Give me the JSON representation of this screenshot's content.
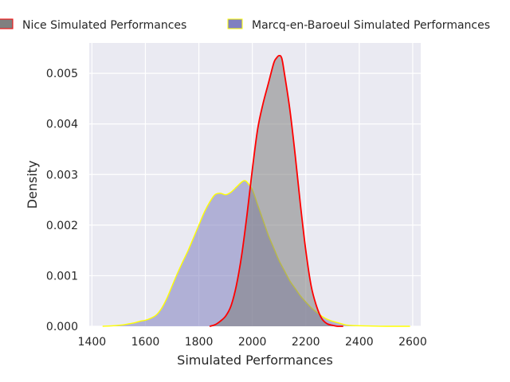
{
  "chart_data": {
    "type": "area",
    "xlabel": "Simulated Performances",
    "ylabel": "Density",
    "xlim": [
      1390,
      2630
    ],
    "ylim": [
      0,
      0.0056
    ],
    "x_ticks": [
      1400,
      1600,
      1800,
      2000,
      2200,
      2400,
      2600
    ],
    "x_tick_labels": [
      "1400",
      "1600",
      "1800",
      "2000",
      "2200",
      "2400",
      "2600"
    ],
    "y_ticks": [
      0,
      0.001,
      0.002,
      0.003,
      0.004,
      0.005
    ],
    "y_tick_labels": [
      "0.000",
      "0.001",
      "0.002",
      "0.003",
      "0.004",
      "0.005"
    ],
    "grid": true,
    "legend_position": "top",
    "series": [
      {
        "name": "Nice Simulated Performances",
        "fill": "#808080",
        "stroke": "#ff0000",
        "legend_edge": "#ff0000",
        "x": [
          1840,
          1860,
          1880,
          1900,
          1920,
          1940,
          1960,
          1980,
          2000,
          2020,
          2040,
          2060,
          2080,
          2090,
          2100,
          2110,
          2120,
          2140,
          2160,
          2180,
          2200,
          2220,
          2240,
          2260,
          2280,
          2300,
          2320,
          2340
        ],
        "y": [
          0,
          3e-05,
          0.0001,
          0.0002,
          0.0004,
          0.0008,
          0.0014,
          0.0022,
          0.0031,
          0.0039,
          0.0044,
          0.0048,
          0.0052,
          0.0053,
          0.00535,
          0.0053,
          0.005,
          0.0043,
          0.0034,
          0.0024,
          0.0015,
          0.0008,
          0.0004,
          0.00015,
          5e-05,
          2e-05,
          0,
          0
        ]
      },
      {
        "name": "Marcq-en-Baroeul Simulated Performances",
        "fill": "#8080c0",
        "stroke": "#ffff00",
        "legend_edge": "#ffff00",
        "x": [
          1440,
          1480,
          1500,
          1520,
          1540,
          1560,
          1580,
          1600,
          1620,
          1640,
          1660,
          1680,
          1700,
          1720,
          1740,
          1760,
          1780,
          1800,
          1820,
          1840,
          1860,
          1880,
          1900,
          1920,
          1940,
          1960,
          1970,
          1980,
          2000,
          2020,
          2040,
          2060,
          2080,
          2100,
          2120,
          2140,
          2160,
          2180,
          2200,
          2220,
          2240,
          2260,
          2280,
          2300,
          2320,
          2340,
          2360,
          2400,
          2450,
          2500,
          2550,
          2590
        ],
        "y": [
          0,
          1e-05,
          2e-05,
          3e-05,
          5e-05,
          7e-05,
          0.0001,
          0.00012,
          0.00016,
          0.00022,
          0.00035,
          0.00055,
          0.0008,
          0.00105,
          0.00128,
          0.0015,
          0.00175,
          0.002,
          0.00225,
          0.00245,
          0.0026,
          0.00263,
          0.0026,
          0.00265,
          0.00275,
          0.00285,
          0.00288,
          0.00285,
          0.0027,
          0.0024,
          0.0021,
          0.0018,
          0.00155,
          0.0013,
          0.0011,
          0.0009,
          0.00075,
          0.0006,
          0.00048,
          0.00037,
          0.00028,
          0.0002,
          0.00014,
          0.0001,
          7e-05,
          4e-05,
          2e-05,
          1e-05,
          5e-06,
          0,
          0,
          0
        ]
      }
    ]
  }
}
